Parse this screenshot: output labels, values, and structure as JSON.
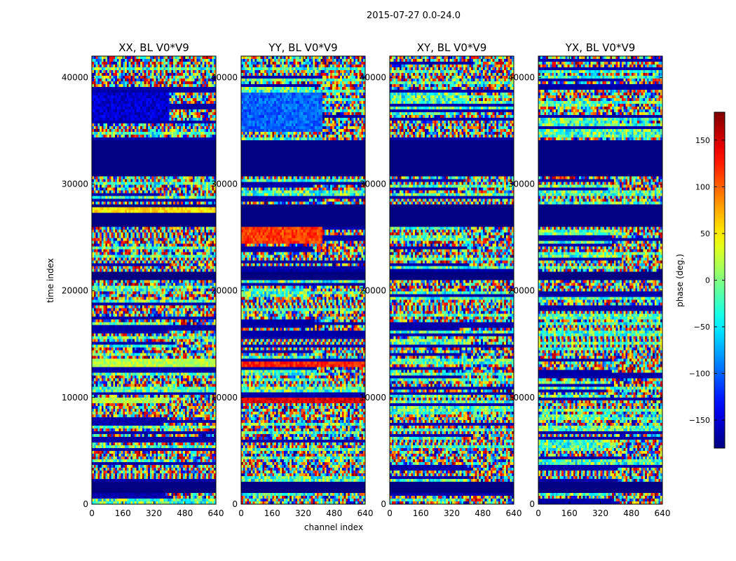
{
  "chart_data": {
    "type": "heatmap",
    "suptitle": "2015-07-27 0.0-24.0",
    "xlabel": "channel index",
    "ylabel": "time index",
    "xlim": [
      0,
      640
    ],
    "ylim": [
      0,
      42000
    ],
    "xticks": [
      0,
      160,
      320,
      480,
      640
    ],
    "yticks": [
      0,
      10000,
      20000,
      30000,
      40000
    ],
    "panels": [
      {
        "title": "XX, BL V0*V9",
        "pol": "XX"
      },
      {
        "title": "YY, BL V0*V9",
        "pol": "YY"
      },
      {
        "title": "XY, BL V0*V9",
        "pol": "XY"
      },
      {
        "title": "YX, BL V0*V9",
        "pol": "YX"
      }
    ],
    "colorbar": {
      "label": "phase (deg.)",
      "colormap": "jet",
      "vmin": -180,
      "vmax": 180,
      "ticks": [
        -150,
        -100,
        -50,
        0,
        50,
        100,
        150
      ],
      "tick_labels": [
        "−150",
        "−100",
        "−50",
        "0",
        "50",
        "100",
        "150"
      ]
    },
    "masked_rows": [
      {
        "from": 26300,
        "to": 27900
      },
      {
        "from": 31000,
        "to": 34100
      },
      {
        "from": 1500,
        "to": 2000
      },
      {
        "from": 21300,
        "to": 21700
      }
    ]
  }
}
